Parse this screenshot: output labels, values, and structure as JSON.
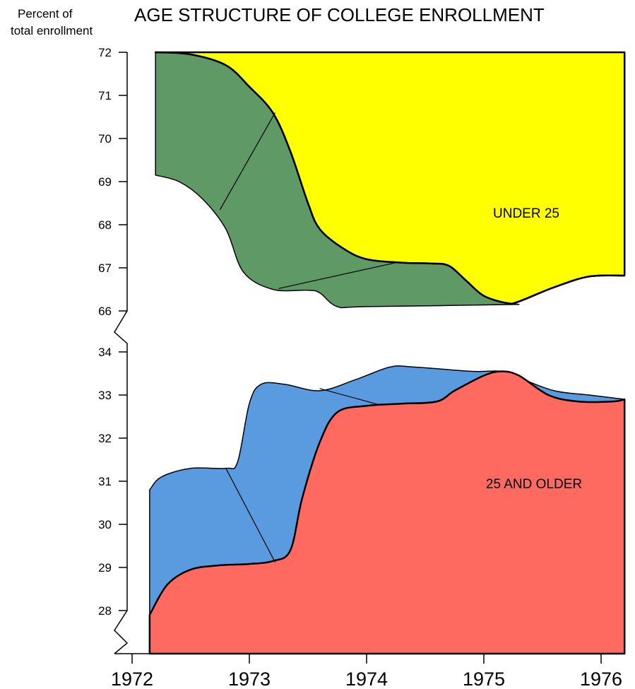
{
  "chart_data": {
    "type": "area",
    "title": "AGE STRUCTURE OF COLLEGE ENROLLMENT",
    "ylabel_line1": "Percent of",
    "ylabel_line2": "total enrollment",
    "x_ticks": [
      "1972",
      "1973",
      "1974",
      "1975",
      "1976"
    ],
    "xlim": [
      1972,
      1976.2
    ],
    "panels": [
      {
        "name": "upper",
        "ylim": [
          66,
          72
        ],
        "y_ticks": [
          72,
          71,
          70,
          69,
          68,
          67,
          66
        ],
        "annotation": "UNDER 25",
        "colors": {
          "main": "#ffff00",
          "band": "#5e9966"
        },
        "main_boundary": [
          [
            1972.2,
            72.0
          ],
          [
            1972.5,
            71.95
          ],
          [
            1972.8,
            71.7
          ],
          [
            1973.0,
            71.2
          ],
          [
            1973.2,
            70.6
          ],
          [
            1973.35,
            69.7
          ],
          [
            1973.5,
            68.5
          ],
          [
            1973.6,
            67.9
          ],
          [
            1973.8,
            67.45
          ],
          [
            1974.0,
            67.2
          ],
          [
            1974.3,
            67.12
          ],
          [
            1974.55,
            67.1
          ],
          [
            1974.7,
            67.05
          ],
          [
            1974.85,
            66.7
          ],
          [
            1975.0,
            66.35
          ],
          [
            1975.2,
            66.18
          ],
          [
            1975.3,
            66.22
          ],
          [
            1975.6,
            66.55
          ],
          [
            1975.9,
            66.8
          ],
          [
            1976.2,
            66.82
          ]
        ],
        "band_lower": [
          [
            1972.2,
            69.15
          ],
          [
            1972.4,
            69.0
          ],
          [
            1972.6,
            68.6
          ],
          [
            1972.8,
            67.9
          ],
          [
            1972.95,
            66.9
          ],
          [
            1973.2,
            66.5
          ],
          [
            1973.5,
            66.48
          ],
          [
            1973.6,
            66.42
          ],
          [
            1973.75,
            66.1
          ],
          [
            1974.0,
            66.1
          ],
          [
            1975.3,
            66.15
          ]
        ],
        "band_dividers": [
          [
            [
              1972.75,
              68.35
            ],
            [
              1973.22,
              70.6
            ]
          ],
          [
            [
              1973.25,
              66.52
            ],
            [
              1974.25,
              67.12
            ]
          ]
        ]
      },
      {
        "name": "lower",
        "ylim": [
          27,
          34
        ],
        "y_ticks": [
          34,
          33,
          32,
          31,
          30,
          29,
          28
        ],
        "annotation": "25  AND OLDER",
        "colors": {
          "main": "#ff6a60",
          "band": "#5a9be0"
        },
        "main_top": [
          [
            1972.15,
            27.9
          ],
          [
            1972.3,
            28.6
          ],
          [
            1972.5,
            28.95
          ],
          [
            1972.75,
            29.05
          ],
          [
            1973.0,
            29.08
          ],
          [
            1973.2,
            29.15
          ],
          [
            1973.35,
            29.4
          ],
          [
            1973.45,
            30.6
          ],
          [
            1973.6,
            31.9
          ],
          [
            1973.75,
            32.6
          ],
          [
            1974.0,
            32.75
          ],
          [
            1974.3,
            32.8
          ],
          [
            1974.6,
            32.85
          ],
          [
            1974.75,
            33.1
          ],
          [
            1975.0,
            33.45
          ],
          [
            1975.15,
            33.55
          ],
          [
            1975.3,
            33.45
          ],
          [
            1975.55,
            33.0
          ],
          [
            1975.8,
            32.85
          ],
          [
            1976.1,
            32.85
          ],
          [
            1976.2,
            32.9
          ]
        ],
        "band_top": [
          [
            1972.15,
            30.8
          ],
          [
            1972.25,
            31.1
          ],
          [
            1972.5,
            31.3
          ],
          [
            1972.8,
            31.3
          ],
          [
            1972.9,
            31.45
          ],
          [
            1973.0,
            32.8
          ],
          [
            1973.1,
            33.25
          ],
          [
            1973.3,
            33.25
          ],
          [
            1973.6,
            33.1
          ],
          [
            1973.9,
            33.35
          ],
          [
            1974.2,
            33.65
          ],
          [
            1974.4,
            33.65
          ],
          [
            1974.9,
            33.55
          ],
          [
            1975.15,
            33.55
          ],
          [
            1975.3,
            33.4
          ],
          [
            1975.6,
            33.1
          ],
          [
            1975.9,
            33.0
          ],
          [
            1976.2,
            32.9
          ]
        ],
        "band_dividers": [
          [
            [
              1972.8,
              31.3
            ],
            [
              1973.22,
              29.12
            ]
          ],
          [
            [
              1973.6,
              33.15
            ],
            [
              1974.1,
              32.78
            ]
          ]
        ]
      }
    ]
  }
}
